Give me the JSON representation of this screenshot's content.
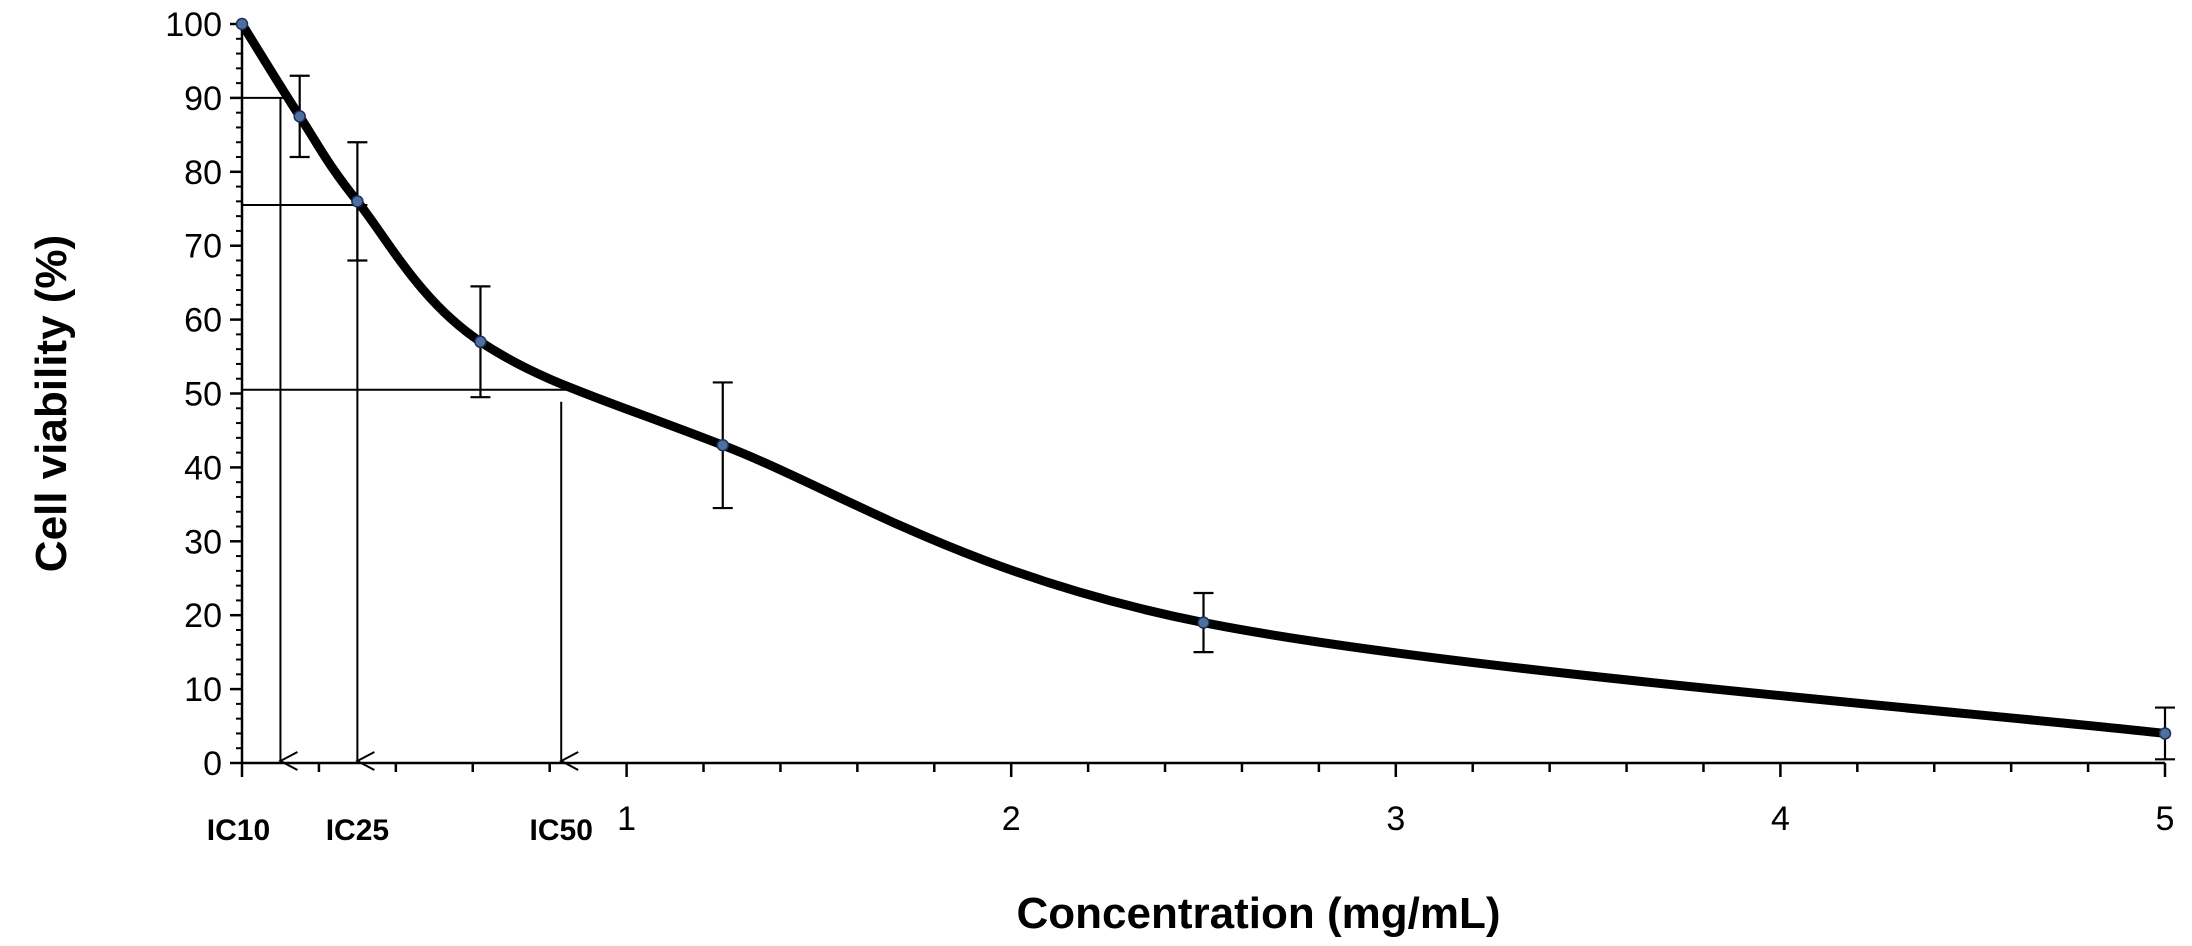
{
  "chart_data": {
    "type": "line",
    "title": "",
    "xlabel": "Concentration (mg/mL)",
    "ylabel": "Cell viability (%)",
    "xlim": [
      0,
      5
    ],
    "ylim": [
      0,
      100
    ],
    "x_ticks": [
      1,
      2,
      3,
      4,
      5
    ],
    "x_tick_labels": [
      "1",
      "2",
      "3",
      "4",
      "5"
    ],
    "y_ticks": [
      0,
      10,
      20,
      30,
      40,
      50,
      60,
      70,
      80,
      90,
      100
    ],
    "y_tick_labels": [
      "0",
      "10",
      "20",
      "30",
      "40",
      "50",
      "60",
      "70",
      "80",
      "90",
      "100"
    ],
    "grid": false,
    "series": [
      {
        "name": "Cell viability",
        "color": "#000000",
        "marker_color": "#4f6fa0",
        "x": [
          0,
          0.15,
          0.3,
          0.62,
          1.25,
          2.5,
          5
        ],
        "y": [
          100,
          87.5,
          76,
          57,
          43,
          19,
          4
        ],
        "error": [
          0,
          5.5,
          8,
          7.5,
          8.5,
          4,
          3.5
        ]
      }
    ],
    "annotations": [
      {
        "label": "IC10",
        "x": 0.1,
        "y": 90
      },
      {
        "label": "IC25",
        "x": 0.3,
        "y": 75.5
      },
      {
        "label": "IC50",
        "x": 0.83,
        "y": 50.5
      }
    ]
  }
}
